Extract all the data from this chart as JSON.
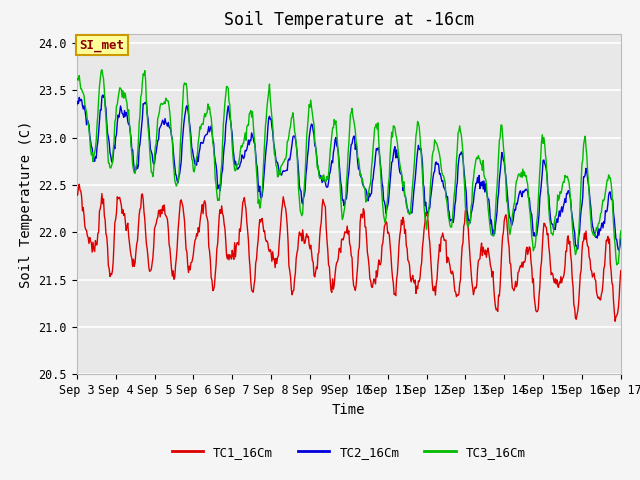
{
  "title": "Soil Temperature at -16cm",
  "xlabel": "Time",
  "ylabel": "Soil Temperature (C)",
  "ylim": [
    20.5,
    24.1
  ],
  "xlim": [
    0,
    336
  ],
  "x_tick_labels": [
    "Sep 3",
    "Sep 4",
    "Sep 5",
    "Sep 6",
    "Sep 7",
    "Sep 8",
    "Sep 9",
    "Sep 10",
    "Sep 11",
    "Sep 12",
    "Sep 13",
    "Sep 14",
    "Sep 15",
    "Sep 16",
    "Sep 17"
  ],
  "x_tick_positions": [
    0,
    24,
    48,
    72,
    96,
    120,
    144,
    168,
    192,
    216,
    240,
    264,
    288,
    312,
    336
  ],
  "y_ticks": [
    20.5,
    21.0,
    21.5,
    22.0,
    22.5,
    23.0,
    23.5,
    24.0
  ],
  "annotation_text": "SI_met",
  "tc1_color": "#dd0000",
  "tc2_color": "#0000dd",
  "tc3_color": "#00bb00",
  "fig_bg_color": "#f5f5f5",
  "plot_bg_color": "#e8e8e8",
  "grid_color": "#ffffff",
  "legend_labels": [
    "TC1_16Cm",
    "TC2_16Cm",
    "TC3_16Cm"
  ],
  "title_fontsize": 12,
  "axis_label_fontsize": 10,
  "tick_fontsize": 8.5
}
